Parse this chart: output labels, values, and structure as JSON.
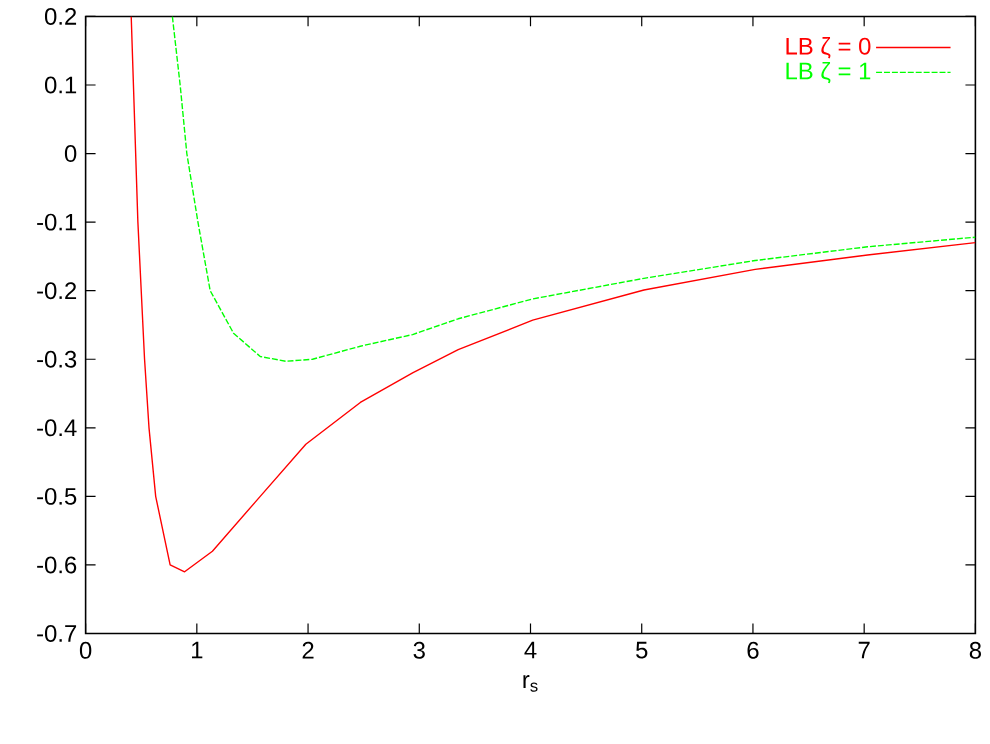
{
  "chart_data": {
    "type": "line",
    "xlabel": "r$_{s}$",
    "xlim": [
      0,
      8
    ],
    "ylim": [
      -0.7,
      0.2
    ],
    "xticks": [
      0,
      1,
      2,
      3,
      4,
      5,
      6,
      7,
      8
    ],
    "yticks": [
      -0.7,
      -0.6,
      -0.5,
      -0.4,
      -0.3,
      -0.2,
      -0.1,
      0,
      0.1,
      0.2
    ],
    "legend": "top right",
    "marker": "none",
    "grid": false,
    "series": [
      {
        "name": "LB ζ = 0",
        "color": "#ff0000",
        "line_style": "solid",
        "x": [
          0.41,
          0.43,
          0.45,
          0.47,
          0.5,
          0.53,
          0.57,
          0.63,
          0.76,
          0.89,
          1.14,
          1.57,
          1.98,
          2.47,
          2.94,
          3.35,
          4.02,
          5.02,
          6.02,
          7.03,
          8.0
        ],
        "values": [
          0.2,
          0.1,
          0,
          -0.1,
          -0.2,
          -0.3,
          -0.4,
          -0.5,
          -0.6,
          -0.61,
          -0.58,
          -0.5,
          -0.424,
          -0.363,
          -0.32,
          -0.286,
          -0.243,
          -0.199,
          -0.169,
          -0.148,
          -0.13
        ]
      },
      {
        "name": "LB ζ = 1",
        "color": "#00ff00",
        "line_style": "dashed",
        "x": [
          0.78,
          0.85,
          0.91,
          1.01,
          1.12,
          1.33,
          1.57,
          1.8,
          2.04,
          2.47,
          2.94,
          3.35,
          4.02,
          5.02,
          6.02,
          7.03,
          8.0
        ],
        "values": [
          0.2,
          0.1,
          0,
          -0.1,
          -0.2,
          -0.262,
          -0.296,
          -0.303,
          -0.3,
          -0.281,
          -0.264,
          -0.241,
          -0.212,
          -0.182,
          -0.156,
          -0.136,
          -0.122
        ]
      }
    ]
  }
}
